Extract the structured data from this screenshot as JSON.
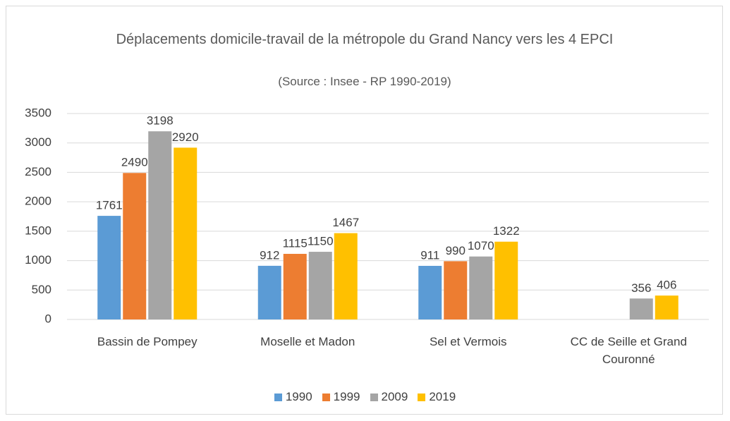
{
  "chart_data": {
    "type": "bar",
    "title": "Déplacements domicile-travail de la métropole du Grand Nancy vers les 4 EPCI",
    "subtitle": "(Source : Insee - RP 1990-2019)",
    "categories": [
      "Bassin de Pompey",
      "Moselle et Madon",
      "Sel et Vermois",
      "CC de Seille et Grand Couronné"
    ],
    "series": [
      {
        "name": "1990",
        "color": "#5b9bd5",
        "values": [
          1761,
          912,
          911,
          null
        ]
      },
      {
        "name": "1999",
        "color": "#ed7d31",
        "values": [
          2490,
          1115,
          990,
          null
        ]
      },
      {
        "name": "2009",
        "color": "#a5a5a5",
        "values": [
          3198,
          1150,
          1070,
          356
        ]
      },
      {
        "name": "2019",
        "color": "#ffc000",
        "values": [
          2920,
          1467,
          1322,
          406
        ]
      }
    ],
    "ylim": [
      0,
      3500
    ],
    "yticks": [
      0,
      500,
      1000,
      1500,
      2000,
      2500,
      3000,
      3500
    ],
    "grid": true,
    "legend": "bottom"
  }
}
